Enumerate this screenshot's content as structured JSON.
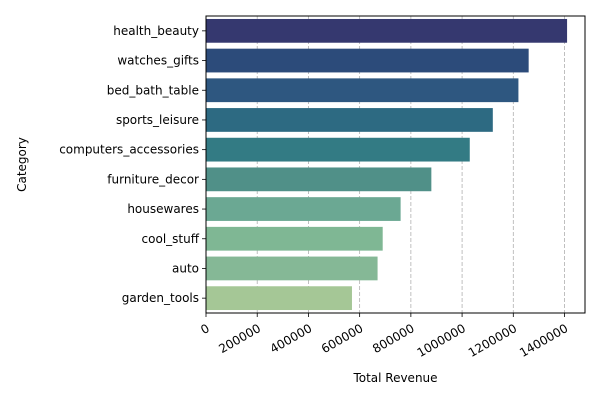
{
  "chart_data": {
    "type": "bar",
    "orientation": "horizontal",
    "categories": [
      "health_beauty",
      "watches_gifts",
      "bed_bath_table",
      "sports_leisure",
      "computers_accessories",
      "furniture_decor",
      "housewares",
      "cool_stuff",
      "auto",
      "garden_tools"
    ],
    "values": [
      1410000,
      1260000,
      1220000,
      1120000,
      1030000,
      880000,
      760000,
      690000,
      670000,
      570000
    ],
    "colors": [
      "#35386f",
      "#2c4b7a",
      "#2e5780",
      "#2d6a82",
      "#337b84",
      "#509088",
      "#6ba893",
      "#7fb794",
      "#85b896",
      "#a5c796"
    ],
    "xlabel": "Total Revenue",
    "ylabel": "Category",
    "xlim": [
      0,
      1480000
    ],
    "xticks": [
      0,
      200000,
      400000,
      600000,
      800000,
      1000000,
      1200000,
      1400000
    ],
    "xtick_labels": [
      "0",
      "200000",
      "400000",
      "600000",
      "800000",
      "1000000",
      "1200000",
      "1400000"
    ],
    "grid": "x-dashed"
  }
}
